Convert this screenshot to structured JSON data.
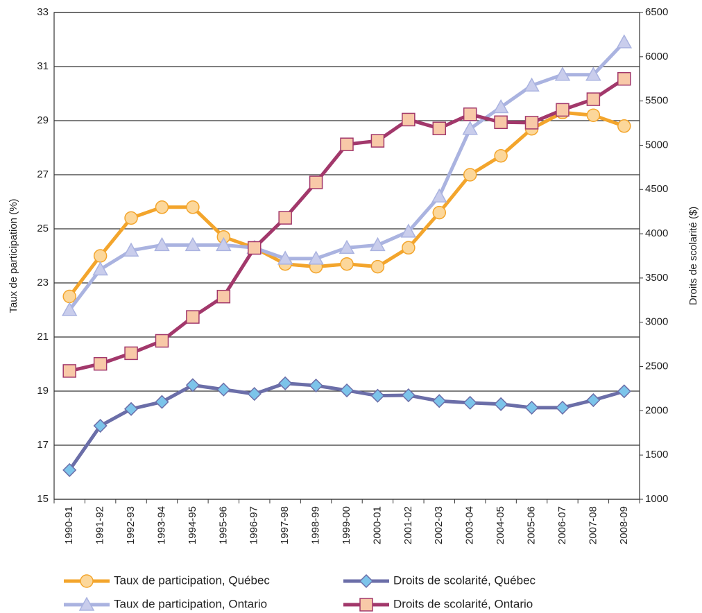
{
  "chart_data": {
    "type": "line",
    "y_label": "Taux de participation (%)",
    "y2_label": "Droits de scolarité ($)",
    "categories": [
      "1990-91",
      "1991-92",
      "1992-93",
      "1993-94",
      "1994-95",
      "1995-96",
      "1996-97",
      "1997-98",
      "1998-99",
      "1999-00",
      "2000-01",
      "2001-02",
      "2002-03",
      "2003-04",
      "2004-05",
      "2005-06",
      "2006-07",
      "2007-08",
      "2008-09"
    ],
    "series": [
      {
        "name": "Taux de participation, Québec",
        "color": "#f3a52c",
        "marker_fill": "#fcd79a",
        "marker": "circle",
        "values": [
          22.5,
          24.0,
          25.4,
          25.8,
          25.8,
          24.7,
          24.3,
          23.7,
          23.6,
          23.7,
          23.6,
          24.3,
          25.6,
          27.0,
          27.7,
          28.7,
          29.3,
          29.2,
          28.8
        ]
      },
      {
        "name": "Droits de scolarité, Québec",
        "color": "#6b6ea8",
        "marker_fill": "#7cc4ea",
        "marker": "diamond",
        "axis": "y2",
        "values": [
          1330,
          1830,
          2020,
          2100,
          2290,
          2240,
          2190,
          2310,
          2285,
          2230,
          2170,
          2175,
          2110,
          2090,
          2075,
          2035,
          2035,
          2120,
          2220
        ]
      },
      {
        "name": "Taux de participation, Ontario",
        "color": "#aab3e0",
        "marker_fill": "#c9cdec",
        "marker": "triangle",
        "values": [
          22.0,
          23.5,
          24.2,
          24.4,
          24.4,
          24.4,
          24.3,
          23.9,
          23.9,
          24.3,
          24.4,
          24.9,
          26.2,
          28.7,
          29.5,
          30.3,
          30.7,
          30.7,
          31.9
        ]
      },
      {
        "name": "Droits de scolarité, Ontario",
        "color": "#a2386b",
        "marker_fill": "#f8c9a8",
        "marker": "square",
        "axis": "y2",
        "values": [
          2450,
          2530,
          2650,
          2790,
          3060,
          3290,
          3840,
          4180,
          4580,
          5010,
          5050,
          5290,
          5190,
          5350,
          5260,
          5255,
          5400,
          5520,
          5750
        ]
      }
    ],
    "ylim": [
      15,
      33
    ],
    "yticks": [
      15,
      17,
      19,
      21,
      23,
      25,
      27,
      29,
      31,
      33
    ],
    "y2lim": [
      1000,
      6500
    ],
    "y2ticks": [
      1000,
      1500,
      2000,
      2500,
      3000,
      3500,
      4000,
      4500,
      5000,
      5500,
      6000,
      6500
    ],
    "grid": true
  }
}
